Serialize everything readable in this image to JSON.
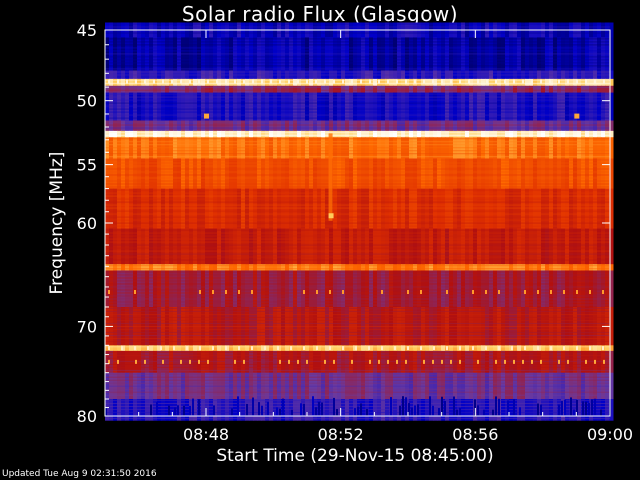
{
  "chart_data": {
    "type": "heatmap",
    "title": "Solar radio Flux (Glasgow)",
    "xlabel": "Start Time (29-Nov-15 08:45:00)",
    "ylabel": "Frequency [MHz]",
    "x_ticks": [
      "08:48",
      "08:52",
      "08:56",
      "09:00"
    ],
    "x_tick_minutes": [
      3,
      7,
      11,
      15
    ],
    "xlim_minutes": [
      0,
      15
    ],
    "y_ticks": [
      45,
      50,
      55,
      60,
      70,
      80
    ],
    "ylim_mhz": [
      45,
      80
    ],
    "y_scale": "log",
    "colormap": [
      "#000033",
      "#0000c8",
      "#6a3aa0",
      "#b01010",
      "#e03000",
      "#ff6a00",
      "#ffd060",
      "#ffffff"
    ],
    "bands": [
      {
        "f0": 44.5,
        "f1": 45.5,
        "level": 0.15
      },
      {
        "f0": 45.5,
        "f1": 47.8,
        "level": 0.12
      },
      {
        "f0": 47.8,
        "f1": 48.4,
        "level": 0.2
      },
      {
        "f0": 48.4,
        "f1": 48.9,
        "level": 0.9
      },
      {
        "f0": 48.9,
        "f1": 49.4,
        "level": 0.35
      },
      {
        "f0": 49.4,
        "f1": 51.5,
        "level": 0.18
      },
      {
        "f0": 51.5,
        "f1": 52.3,
        "level": 0.3
      },
      {
        "f0": 52.3,
        "f1": 52.8,
        "level": 0.95
      },
      {
        "f0": 52.8,
        "f1": 54.5,
        "level": 0.72
      },
      {
        "f0": 54.5,
        "f1": 57.0,
        "level": 0.65
      },
      {
        "f0": 57.0,
        "f1": 60.5,
        "level": 0.55
      },
      {
        "f0": 60.5,
        "f1": 63.8,
        "level": 0.48
      },
      {
        "f0": 63.8,
        "f1": 64.4,
        "level": 0.75
      },
      {
        "f0": 64.4,
        "f1": 68.0,
        "level": 0.4
      },
      {
        "f0": 68.0,
        "f1": 72.0,
        "level": 0.45
      },
      {
        "f0": 72.0,
        "f1": 72.6,
        "level": 0.85
      },
      {
        "f0": 72.6,
        "f1": 75.0,
        "level": 0.42
      },
      {
        "f0": 75.0,
        "f1": 78.0,
        "level": 0.3
      },
      {
        "f0": 78.0,
        "f1": 80.5,
        "level": 0.2
      }
    ],
    "hotspots": [
      {
        "t": 3.0,
        "f": 51.2,
        "level": 0.8
      },
      {
        "t": 14.0,
        "f": 51.2,
        "level": 0.8
      },
      {
        "t": 6.7,
        "f": 59.4,
        "level": 0.85
      }
    ]
  },
  "footer": {
    "updated": "Updated Tue Aug  9 02:31:50 2016"
  }
}
